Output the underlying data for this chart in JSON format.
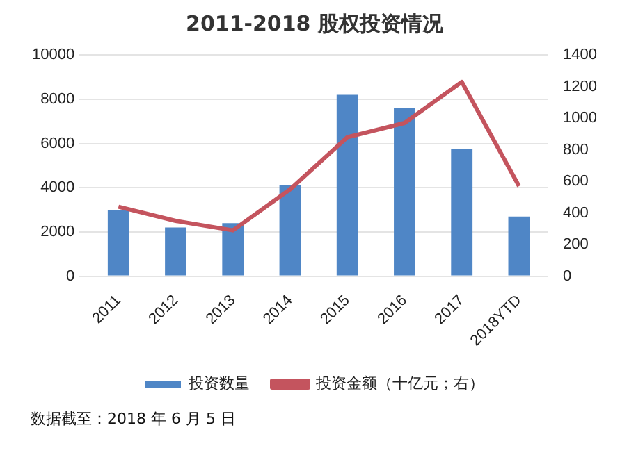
{
  "chart_data": {
    "type": "bar",
    "title": "2011-2018 股权投资情况",
    "categories": [
      "2011",
      "2012",
      "2013",
      "2014",
      "2015",
      "2016",
      "2017",
      "2018YTD"
    ],
    "series": [
      {
        "name": "投资数量",
        "color": "#4f86c6",
        "values": [
          3000,
          2200,
          2400,
          4100,
          8200,
          7600,
          5750,
          2700
        ]
      },
      {
        "name": "投资金额（十亿元；右）",
        "type": "line",
        "axis": "y2",
        "color": "#c4545e",
        "values": [
          440,
          350,
          290,
          550,
          880,
          970,
          1230,
          570
        ]
      }
    ],
    "ylim": [
      0,
      10000
    ],
    "yticks": [
      0,
      2000,
      4000,
      6000,
      8000,
      10000
    ],
    "y2lim": [
      0,
      1400
    ],
    "y2ticks": [
      0,
      200,
      400,
      600,
      800,
      1000,
      1200,
      1400
    ],
    "grid": "y",
    "legend": "bottom",
    "marker": "none",
    "annotations": [
      "数据截至：2018 年 6 月 5 日"
    ]
  }
}
